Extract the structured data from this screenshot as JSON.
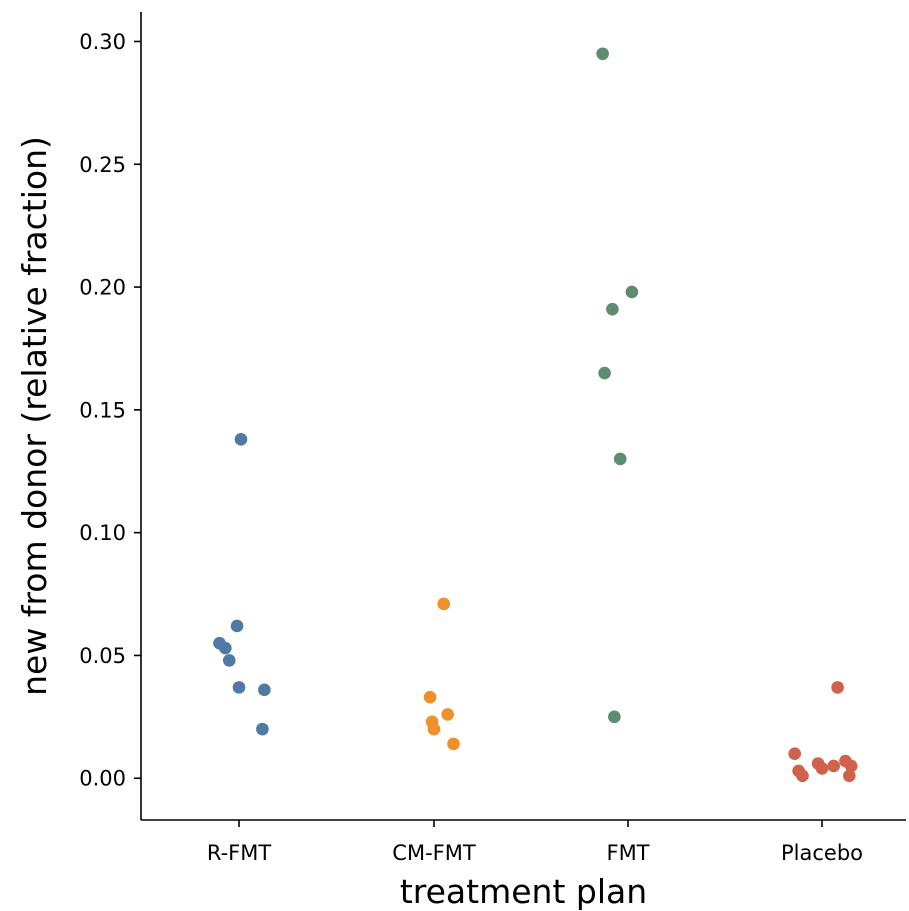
{
  "chart_data": {
    "type": "scatter",
    "xlabel": "treatment plan",
    "ylabel": "new from donor (relative fraction)",
    "categories": [
      "R-FMT",
      "CM-FMT",
      "FMT",
      "Placebo"
    ],
    "ylim": [
      -0.017,
      0.312
    ],
    "yticks": [
      "0.00",
      "0.05",
      "0.10",
      "0.15",
      "0.20",
      "0.25",
      "0.30"
    ],
    "grid": false,
    "series": [
      {
        "category": "R-FMT",
        "color": "#4e7aa5",
        "points": [
          {
            "jitter": 0.01,
            "y": 0.138
          },
          {
            "jitter": -0.01,
            "y": 0.062
          },
          {
            "jitter": -0.1,
            "y": 0.055
          },
          {
            "jitter": -0.07,
            "y": 0.053
          },
          {
            "jitter": -0.05,
            "y": 0.048
          },
          {
            "jitter": 0.0,
            "y": 0.037
          },
          {
            "jitter": 0.13,
            "y": 0.036
          },
          {
            "jitter": 0.12,
            "y": 0.02
          }
        ]
      },
      {
        "category": "CM-FMT",
        "color": "#f0902a",
        "points": [
          {
            "jitter": 0.05,
            "y": 0.071
          },
          {
            "jitter": -0.02,
            "y": 0.033
          },
          {
            "jitter": 0.07,
            "y": 0.026
          },
          {
            "jitter": -0.01,
            "y": 0.023
          },
          {
            "jitter": 0.0,
            "y": 0.02
          },
          {
            "jitter": 0.1,
            "y": 0.014
          }
        ]
      },
      {
        "category": "FMT",
        "color": "#5e8c70",
        "points": [
          {
            "jitter": -0.13,
            "y": 0.295
          },
          {
            "jitter": 0.02,
            "y": 0.198
          },
          {
            "jitter": -0.08,
            "y": 0.191
          },
          {
            "jitter": -0.12,
            "y": 0.165
          },
          {
            "jitter": -0.04,
            "y": 0.13
          },
          {
            "jitter": -0.07,
            "y": 0.025
          }
        ]
      },
      {
        "category": "Placebo",
        "color": "#d0614b",
        "points": [
          {
            "jitter": 0.08,
            "y": 0.037
          },
          {
            "jitter": -0.14,
            "y": 0.01
          },
          {
            "jitter": 0.12,
            "y": 0.007
          },
          {
            "jitter": -0.02,
            "y": 0.006
          },
          {
            "jitter": 0.06,
            "y": 0.005
          },
          {
            "jitter": 0.15,
            "y": 0.005
          },
          {
            "jitter": 0.0,
            "y": 0.004
          },
          {
            "jitter": -0.12,
            "y": 0.003
          },
          {
            "jitter": -0.1,
            "y": 0.001
          },
          {
            "jitter": 0.14,
            "y": 0.001
          }
        ]
      }
    ]
  }
}
